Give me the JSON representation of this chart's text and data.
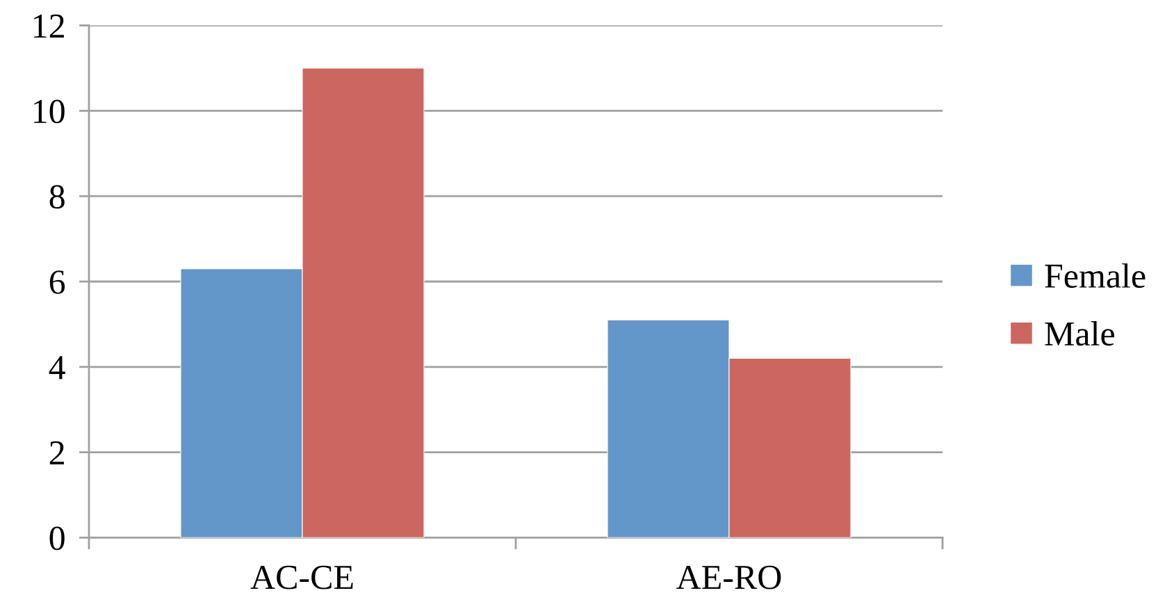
{
  "chart_data": {
    "type": "bar",
    "categories": [
      "AC-CE",
      "AE-RO"
    ],
    "series": [
      {
        "name": "Female",
        "color": "#6396c9",
        "values": [
          6.3,
          5.1
        ]
      },
      {
        "name": "Male",
        "color": "#cc6660",
        "values": [
          11.0,
          4.2
        ]
      }
    ],
    "ylim": [
      0,
      12
    ],
    "yticks": [
      0,
      2,
      4,
      6,
      8,
      10,
      12
    ],
    "grid": "y",
    "legend": "right"
  }
}
